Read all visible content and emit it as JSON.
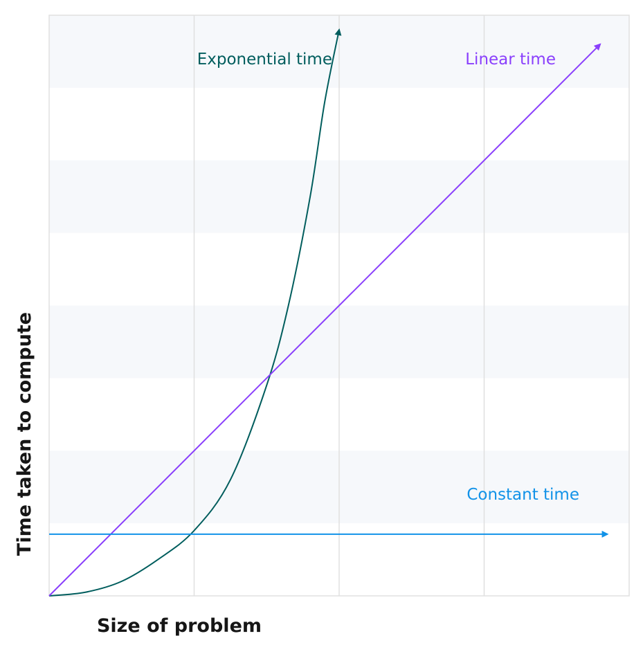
{
  "chart_data": {
    "type": "line",
    "xlabel": "Size of problem",
    "ylabel": "Time taken to compute",
    "xlim": [
      0,
      4
    ],
    "ylim": [
      0,
      8
    ],
    "grid": true,
    "legend": "inline labels",
    "series": [
      {
        "name": "Exponential time",
        "color": "#005d5d",
        "x": [
          0,
          0.25,
          0.5,
          0.75,
          1.0,
          1.25,
          1.5,
          1.65,
          1.8,
          1.9,
          2.0
        ],
        "y": [
          0,
          0.05,
          0.2,
          0.5,
          0.9,
          1.6,
          2.9,
          4.0,
          5.5,
          6.8,
          7.8
        ]
      },
      {
        "name": "Linear time",
        "color": "#8a3ffc",
        "x": [
          0,
          3.8
        ],
        "y": [
          0,
          7.6
        ]
      },
      {
        "name": "Constant time",
        "color": "#1192e8",
        "x": [
          0,
          3.85
        ],
        "y": [
          0.85,
          0.85
        ]
      }
    ]
  }
}
